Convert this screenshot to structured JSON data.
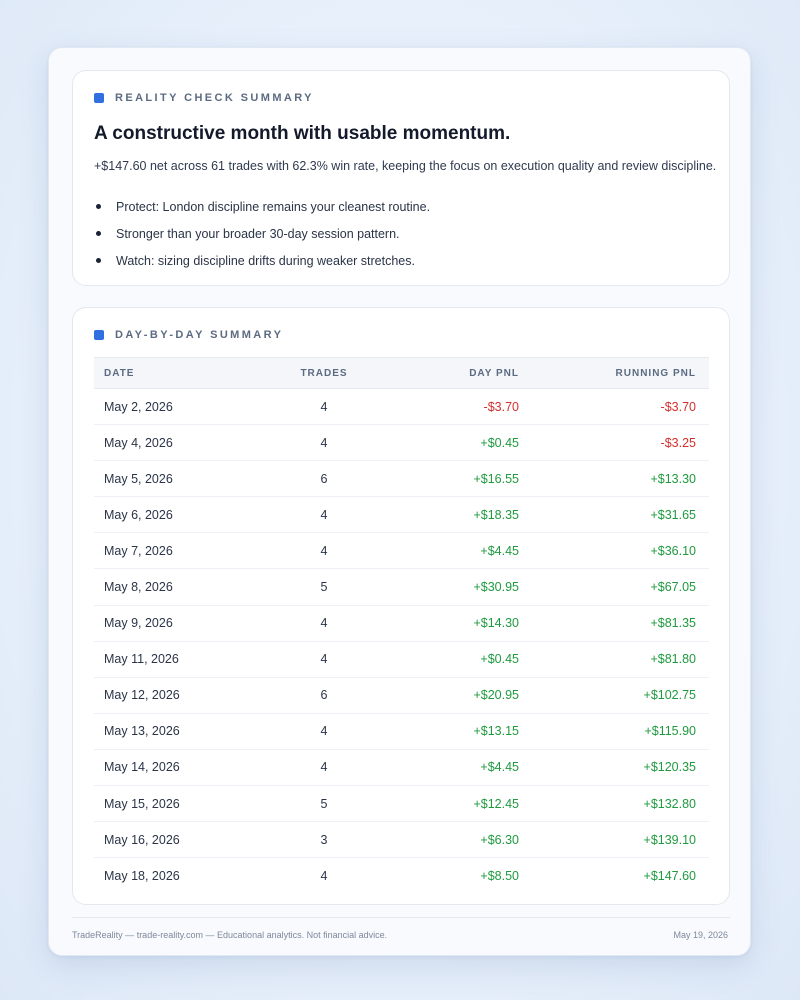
{
  "summary": {
    "kicker": "REALITY CHECK SUMMARY",
    "headline": "A constructive month with usable momentum.",
    "lead": "+$147.60 net across 61 trades with 62.3% win rate, keeping the focus on execution quality and review discipline.",
    "bullets": [
      "Protect: London discipline remains your cleanest routine.",
      "Stronger than your broader 30-day session pattern.",
      "Watch: sizing discipline drifts during weaker stretches."
    ]
  },
  "daily": {
    "kicker": "DAY-BY-DAY SUMMARY",
    "columns": [
      "DATE",
      "TRADES",
      "DAY PNL",
      "RUNNING PNL"
    ],
    "rows": [
      {
        "date": "May 2, 2026",
        "trades": "4",
        "day_pnl": "-$3.70",
        "running_pnl": "-$3.70",
        "day_sign": "neg",
        "run_sign": "neg"
      },
      {
        "date": "May 4, 2026",
        "trades": "4",
        "day_pnl": "+$0.45",
        "running_pnl": "-$3.25",
        "day_sign": "pos",
        "run_sign": "neg"
      },
      {
        "date": "May 5, 2026",
        "trades": "6",
        "day_pnl": "+$16.55",
        "running_pnl": "+$13.30",
        "day_sign": "pos",
        "run_sign": "pos"
      },
      {
        "date": "May 6, 2026",
        "trades": "4",
        "day_pnl": "+$18.35",
        "running_pnl": "+$31.65",
        "day_sign": "pos",
        "run_sign": "pos"
      },
      {
        "date": "May 7, 2026",
        "trades": "4",
        "day_pnl": "+$4.45",
        "running_pnl": "+$36.10",
        "day_sign": "pos",
        "run_sign": "pos"
      },
      {
        "date": "May 8, 2026",
        "trades": "5",
        "day_pnl": "+$30.95",
        "running_pnl": "+$67.05",
        "day_sign": "pos",
        "run_sign": "pos"
      },
      {
        "date": "May 9, 2026",
        "trades": "4",
        "day_pnl": "+$14.30",
        "running_pnl": "+$81.35",
        "day_sign": "pos",
        "run_sign": "pos"
      },
      {
        "date": "May 11, 2026",
        "trades": "4",
        "day_pnl": "+$0.45",
        "running_pnl": "+$81.80",
        "day_sign": "pos",
        "run_sign": "pos"
      },
      {
        "date": "May 12, 2026",
        "trades": "6",
        "day_pnl": "+$20.95",
        "running_pnl": "+$102.75",
        "day_sign": "pos",
        "run_sign": "pos"
      },
      {
        "date": "May 13, 2026",
        "trades": "4",
        "day_pnl": "+$13.15",
        "running_pnl": "+$115.90",
        "day_sign": "pos",
        "run_sign": "pos"
      },
      {
        "date": "May 14, 2026",
        "trades": "4",
        "day_pnl": "+$4.45",
        "running_pnl": "+$120.35",
        "day_sign": "pos",
        "run_sign": "pos"
      },
      {
        "date": "May 15, 2026",
        "trades": "5",
        "day_pnl": "+$12.45",
        "running_pnl": "+$132.80",
        "day_sign": "pos",
        "run_sign": "pos"
      },
      {
        "date": "May 16, 2026",
        "trades": "3",
        "day_pnl": "+$6.30",
        "running_pnl": "+$139.10",
        "day_sign": "pos",
        "run_sign": "pos"
      },
      {
        "date": "May 18, 2026",
        "trades": "4",
        "day_pnl": "+$8.50",
        "running_pnl": "+$147.60",
        "day_sign": "pos",
        "run_sign": "pos"
      }
    ]
  },
  "footer": {
    "left": "TradeReality — trade-reality.com — Educational analytics. Not financial advice.",
    "right": "May 19, 2026"
  },
  "colors": {
    "accent": "#2f6fdf",
    "positive": "#1f9a3e",
    "negative": "#d2302c"
  },
  "icons": {
    "section_marker": "square-marker-icon",
    "bullet": "bullet-dot-icon"
  }
}
